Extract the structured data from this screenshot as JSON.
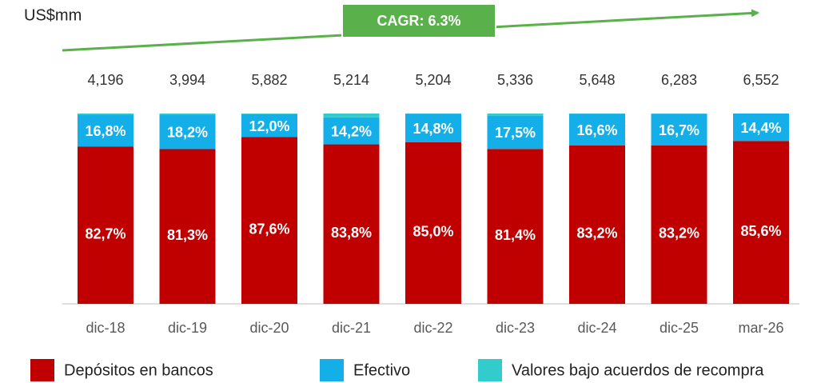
{
  "chart_data": {
    "type": "stacked_bar_100",
    "unit_label": "US$mm",
    "annotation": "CAGR: 6.3%",
    "categories": [
      "dic-18",
      "dic-19",
      "dic-20",
      "dic-21",
      "dic-22",
      "dic-23",
      "dic-24",
      "dic-25",
      "mar-26"
    ],
    "ylim": [
      0,
      100
    ],
    "totals": {
      "values": [
        4196,
        3994,
        5882,
        5214,
        5204,
        5336,
        5648,
        6283,
        6552
      ],
      "value_labels": [
        "4,196",
        "3,994",
        "5,882",
        "5,214",
        "5,204",
        "5,336",
        "5,648",
        "6,283",
        "6,552"
      ]
    },
    "series": [
      {
        "name": "Depósitos en bancos",
        "color": "#c00000",
        "values": [
          82.7,
          81.3,
          87.6,
          83.8,
          85.0,
          81.4,
          83.2,
          83.2,
          85.6
        ],
        "value_labels": [
          "82,7%",
          "81,3%",
          "87,6%",
          "83,8%",
          "85,0%",
          "81,4%",
          "83,2%",
          "83,2%",
          "85,6%"
        ]
      },
      {
        "name": "Efectivo",
        "color": "#14aee8",
        "values": [
          16.8,
          18.2,
          12.0,
          14.2,
          14.8,
          17.5,
          16.6,
          16.7,
          14.4
        ],
        "value_labels": [
          "16,8%",
          "18,2%",
          "12,0%",
          "14,2%",
          "14,8%",
          "17,5%",
          "16,6%",
          "16,7%",
          "14,4%"
        ]
      },
      {
        "name": "Valores bajo acuerdos de recompra",
        "color": "#33cccc",
        "values": [
          0.5,
          0.5,
          0.4,
          2.0,
          0.2,
          1.1,
          0.2,
          0.1,
          0.0
        ]
      }
    ]
  }
}
